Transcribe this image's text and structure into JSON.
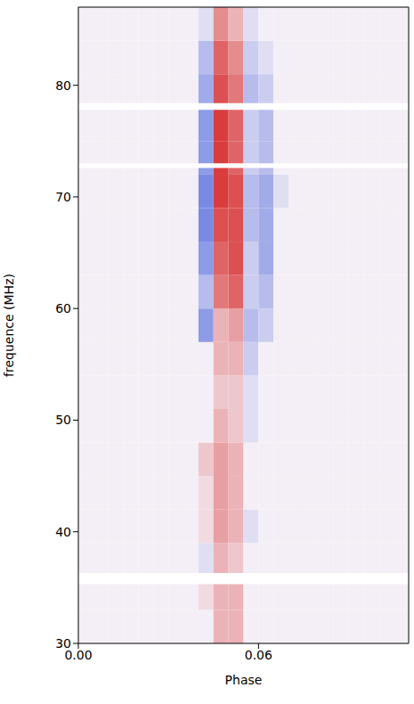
{
  "chart_data": {
    "type": "heatmap",
    "xlabel": "Phase",
    "ylabel": "frequence (MHz)",
    "xlim": [
      0,
      0.11
    ],
    "ylim": [
      30,
      87
    ],
    "xticks": [
      {
        "value": 0,
        "label": "0.00"
      },
      {
        "value": 0.06,
        "label": "0.06"
      }
    ],
    "yticks": [
      30,
      40,
      50,
      60,
      70,
      80
    ],
    "x_bins": [
      0,
      0.005,
      0.01,
      0.015,
      0.02,
      0.025,
      0.03,
      0.035,
      0.04,
      0.045,
      0.05,
      0.055,
      0.06,
      0.065,
      0.07,
      0.075,
      0.08,
      0.085,
      0.09,
      0.095,
      0.1,
      0.105,
      0.11
    ],
    "y_bins": [
      30,
      33,
      36,
      39,
      42,
      45,
      48,
      51,
      54,
      57,
      60,
      63,
      66,
      69,
      72,
      75,
      78,
      81,
      84,
      87
    ],
    "zlim": [
      -1,
      1
    ],
    "masked_bands": [
      [
        35.3,
        36.3
      ],
      [
        72.6,
        73.0
      ],
      [
        77.8,
        78.4
      ]
    ],
    "cells": [
      [
        0,
        0,
        0,
        0,
        0,
        0,
        0,
        0,
        0,
        0.3,
        0.3,
        0,
        0,
        0,
        0,
        0,
        0,
        0,
        0,
        0,
        0,
        0
      ],
      [
        0,
        0,
        0,
        0,
        0,
        0,
        0,
        0,
        0.1,
        0.3,
        0.3,
        0,
        0,
        0,
        0,
        0,
        0,
        0,
        0,
        0,
        0,
        0
      ],
      [
        0,
        0,
        0,
        0,
        0,
        0,
        0,
        0,
        -0.1,
        0.3,
        0.2,
        0,
        0,
        0,
        0,
        0,
        0,
        0,
        0,
        0,
        0,
        0
      ],
      [
        0,
        0,
        0,
        0,
        0,
        0,
        0,
        0,
        0.1,
        0.4,
        0.3,
        -0.1,
        0,
        0,
        0,
        0,
        0,
        0,
        0,
        0,
        0,
        0
      ],
      [
        0,
        0,
        0,
        0,
        0,
        0,
        0,
        0,
        0.1,
        0.4,
        0.3,
        0,
        0,
        0,
        0,
        0,
        0,
        0,
        0,
        0,
        0,
        0
      ],
      [
        0,
        0,
        0,
        0,
        0,
        0,
        0,
        0,
        0.2,
        0.4,
        0.3,
        0,
        0,
        0,
        0,
        0,
        0,
        0,
        0,
        0,
        0,
        0
      ],
      [
        0,
        0,
        0,
        0,
        0,
        0,
        0,
        0,
        0,
        0.3,
        0.2,
        -0.1,
        0,
        0,
        0,
        0,
        0,
        0,
        0,
        0,
        0,
        0
      ],
      [
        0,
        0,
        0,
        0,
        0,
        0,
        0,
        0,
        0,
        0.2,
        0.2,
        -0.1,
        0,
        0,
        0,
        0,
        0,
        0,
        0,
        0,
        0,
        0
      ],
      [
        0,
        0,
        0,
        0,
        0,
        0,
        0,
        0,
        0,
        0.3,
        0.3,
        -0.2,
        0,
        0,
        0,
        0,
        0,
        0,
        0,
        0,
        0,
        0
      ],
      [
        0,
        0,
        0,
        0,
        0,
        0,
        0,
        0,
        -0.5,
        0.3,
        0.4,
        -0.3,
        -0.2,
        0,
        0,
        0,
        0,
        0,
        0,
        0,
        0,
        0
      ],
      [
        0,
        0,
        0,
        0,
        0,
        0,
        0,
        0,
        -0.3,
        0.6,
        0.7,
        -0.2,
        -0.3,
        0,
        0,
        0,
        0,
        0,
        0,
        0,
        0,
        0
      ],
      [
        0,
        0,
        0,
        0,
        0,
        0,
        0,
        0,
        -0.5,
        0.7,
        0.8,
        -0.2,
        -0.4,
        0,
        0,
        0,
        0,
        0,
        0,
        0,
        0,
        0
      ],
      [
        0,
        0,
        0,
        0,
        0,
        0,
        0,
        0,
        -0.6,
        0.8,
        0.8,
        -0.3,
        -0.4,
        0,
        0,
        0,
        0,
        0,
        0,
        0,
        0,
        0
      ],
      [
        0,
        0,
        0,
        0,
        0,
        0,
        0,
        0,
        -0.6,
        0.9,
        0.8,
        -0.3,
        -0.4,
        -0.1,
        0,
        0,
        0,
        0,
        0,
        0,
        0,
        0
      ],
      [
        0,
        0,
        0,
        0,
        0,
        0,
        0,
        0,
        -0.5,
        0.9,
        0.7,
        -0.2,
        -0.3,
        0,
        0,
        0,
        0,
        0,
        0,
        0,
        0,
        0
      ],
      [
        0,
        0,
        0,
        0,
        0,
        0,
        0,
        0,
        -0.5,
        0.9,
        0.7,
        -0.2,
        -0.3,
        0,
        0,
        0,
        0,
        0,
        0,
        0,
        0,
        0
      ],
      [
        0,
        0,
        0,
        0,
        0,
        0,
        0,
        0,
        -0.4,
        0.8,
        0.6,
        -0.3,
        -0.2,
        0,
        0,
        0,
        0,
        0,
        0,
        0,
        0,
        0
      ],
      [
        0,
        0,
        0,
        0,
        0,
        0,
        0,
        0,
        -0.3,
        0.7,
        0.5,
        -0.2,
        -0.1,
        0,
        0,
        0,
        0,
        0,
        0,
        0,
        0,
        0
      ],
      [
        0,
        0,
        0,
        0,
        0,
        0,
        0,
        0,
        -0.1,
        0.5,
        0.3,
        -0.1,
        0,
        0,
        0,
        0,
        0,
        0,
        0,
        0,
        0,
        0
      ]
    ]
  }
}
